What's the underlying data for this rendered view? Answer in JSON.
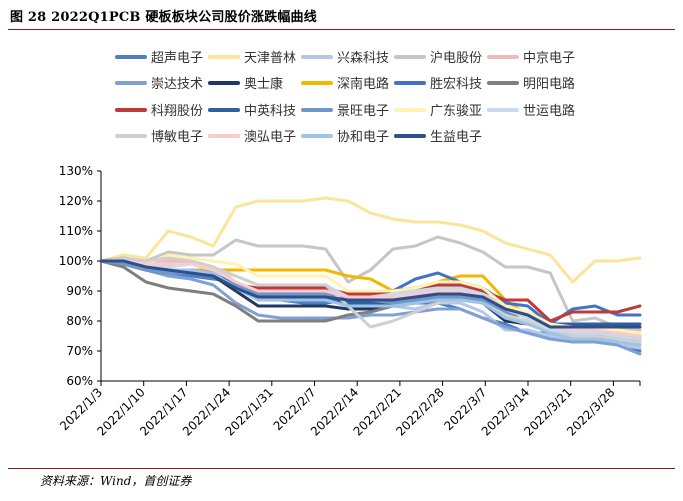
{
  "figure": {
    "title": "图 28 2022Q1PCB 硬板板块公司股价涨跌幅曲线",
    "source": "资料来源：Wind，首创证券"
  },
  "chart_data": {
    "type": "line",
    "title": "图 28 2022Q1PCB 硬板板块公司股价涨跌幅曲线",
    "xlabel": "",
    "ylabel": "",
    "ylim": [
      0.6,
      1.3
    ],
    "y_ticks": [
      0.6,
      0.7,
      0.8,
      0.9,
      1.0,
      1.1,
      1.2,
      1.3
    ],
    "y_tick_labels": [
      "60%",
      "70%",
      "80%",
      "90%",
      "100%",
      "110%",
      "120%",
      "130%"
    ],
    "x_tick_labels": [
      "2022/1/3",
      "2022/1/10",
      "2022/1/17",
      "2022/1/24",
      "2022/1/31",
      "2022/2/7",
      "2022/2/14",
      "2022/2/21",
      "2022/2/28",
      "2022/3/7",
      "2022/3/14",
      "2022/3/21",
      "2022/3/28"
    ],
    "legend_position": "top",
    "series": [
      {
        "name": "超声电子",
        "color": "#4f7fc0",
        "values": [
          1.0,
          0.99,
          0.97,
          0.96,
          0.95,
          0.94,
          0.93,
          0.89,
          0.87,
          0.86,
          0.86,
          0.87,
          0.87,
          0.86,
          0.86,
          0.86,
          0.84,
          0.81,
          0.79,
          0.76,
          0.76,
          0.74,
          0.74,
          0.72,
          0.7
        ]
      },
      {
        "name": "天津普林",
        "color": "#fbe59a",
        "values": [
          1.0,
          1.02,
          1.01,
          1.1,
          1.08,
          1.05,
          1.18,
          1.2,
          1.2,
          1.2,
          1.21,
          1.2,
          1.16,
          1.14,
          1.13,
          1.13,
          1.12,
          1.1,
          1.06,
          1.04,
          1.02,
          0.93,
          1.0,
          1.0,
          1.01
        ]
      },
      {
        "name": "兴森科技",
        "color": "#b4c7e7",
        "values": [
          1.0,
          1.0,
          0.98,
          0.97,
          0.96,
          0.95,
          0.92,
          0.88,
          0.88,
          0.88,
          0.88,
          0.86,
          0.86,
          0.85,
          0.84,
          0.86,
          0.86,
          0.83,
          0.77,
          0.77,
          0.75,
          0.73,
          0.73,
          0.72,
          0.71
        ]
      },
      {
        "name": "沪电股份",
        "color": "#c6c6c6",
        "values": [
          1.0,
          1.01,
          1.0,
          1.03,
          1.02,
          1.02,
          1.07,
          1.05,
          1.05,
          1.05,
          1.04,
          0.93,
          0.97,
          1.04,
          1.05,
          1.08,
          1.06,
          1.03,
          0.98,
          0.98,
          0.96,
          0.8,
          0.81,
          0.78,
          0.77
        ]
      },
      {
        "name": "中京电子",
        "color": "#f4b9b5",
        "values": [
          1.0,
          1.0,
          0.99,
          1.0,
          1.0,
          0.98,
          0.93,
          0.89,
          0.89,
          0.89,
          0.89,
          0.88,
          0.88,
          0.88,
          0.89,
          0.9,
          0.9,
          0.89,
          0.85,
          0.82,
          0.78,
          0.77,
          0.76,
          0.76,
          0.75
        ]
      },
      {
        "name": "崇达技术",
        "color": "#7ea0d6",
        "values": [
          1.0,
          0.99,
          0.97,
          0.95,
          0.94,
          0.92,
          0.86,
          0.82,
          0.81,
          0.81,
          0.81,
          0.81,
          0.82,
          0.82,
          0.83,
          0.84,
          0.84,
          0.81,
          0.78,
          0.76,
          0.74,
          0.73,
          0.73,
          0.72,
          0.69
        ]
      },
      {
        "name": "奥士康",
        "color": "#1f3864",
        "values": [
          1.0,
          0.99,
          0.97,
          0.96,
          0.96,
          0.95,
          0.9,
          0.85,
          0.85,
          0.85,
          0.85,
          0.84,
          0.84,
          0.85,
          0.86,
          0.87,
          0.88,
          0.86,
          0.8,
          0.79,
          0.77,
          0.75,
          0.75,
          0.74,
          0.74
        ]
      },
      {
        "name": "深南电路",
        "color": "#f2b800",
        "values": [
          1.0,
          1.0,
          0.98,
          0.96,
          0.97,
          0.97,
          0.97,
          0.97,
          0.97,
          0.97,
          0.97,
          0.95,
          0.94,
          0.9,
          0.91,
          0.93,
          0.95,
          0.95,
          0.87,
          0.82,
          0.78,
          0.76,
          0.76,
          0.75,
          0.74
        ]
      },
      {
        "name": "胜宏科技",
        "color": "#4472c4",
        "values": [
          1.0,
          1.0,
          0.98,
          0.97,
          0.97,
          0.96,
          0.92,
          0.9,
          0.9,
          0.9,
          0.9,
          0.88,
          0.89,
          0.9,
          0.94,
          0.96,
          0.93,
          0.91,
          0.86,
          0.85,
          0.79,
          0.84,
          0.85,
          0.82,
          0.82
        ]
      },
      {
        "name": "明阳电路",
        "color": "#7f7f7f",
        "values": [
          1.0,
          0.98,
          0.93,
          0.91,
          0.9,
          0.89,
          0.85,
          0.8,
          0.8,
          0.8,
          0.8,
          0.82,
          0.83,
          0.85,
          0.87,
          0.88,
          0.88,
          0.86,
          0.82,
          0.82,
          0.79,
          0.76,
          0.76,
          0.75,
          0.73
        ]
      },
      {
        "name": "科翔股份",
        "color": "#c0393b",
        "values": [
          1.0,
          1.0,
          0.98,
          0.97,
          0.97,
          0.95,
          0.92,
          0.91,
          0.91,
          0.91,
          0.91,
          0.89,
          0.89,
          0.9,
          0.91,
          0.92,
          0.92,
          0.9,
          0.87,
          0.87,
          0.8,
          0.83,
          0.83,
          0.83,
          0.85
        ]
      },
      {
        "name": "中英科技",
        "color": "#2e5fa3",
        "values": [
          1.0,
          1.01,
          0.99,
          0.97,
          0.97,
          0.96,
          0.93,
          0.88,
          0.88,
          0.88,
          0.88,
          0.86,
          0.86,
          0.86,
          0.87,
          0.89,
          0.89,
          0.88,
          0.84,
          0.83,
          0.79,
          0.79,
          0.79,
          0.79,
          0.79
        ]
      },
      {
        "name": "景旺电子",
        "color": "#6f97c9",
        "values": [
          1.0,
          0.99,
          0.97,
          0.96,
          0.96,
          0.95,
          0.92,
          0.89,
          0.89,
          0.89,
          0.89,
          0.87,
          0.87,
          0.86,
          0.87,
          0.88,
          0.88,
          0.87,
          0.83,
          0.82,
          0.78,
          0.76,
          0.76,
          0.75,
          0.75
        ]
      },
      {
        "name": "广东骏亚",
        "color": "#fff2b3",
        "values": [
          1.0,
          1.0,
          0.99,
          1.02,
          1.01,
          1.0,
          0.99,
          0.95,
          0.95,
          0.95,
          0.95,
          0.9,
          0.9,
          0.9,
          0.91,
          0.93,
          0.93,
          0.91,
          0.85,
          0.83,
          0.79,
          0.78,
          0.78,
          0.77,
          0.76
        ]
      },
      {
        "name": "世运电路",
        "color": "#c9d9ee",
        "values": [
          1.0,
          1.0,
          0.98,
          0.98,
          0.99,
          0.97,
          0.95,
          0.92,
          0.92,
          0.92,
          0.92,
          0.88,
          0.88,
          0.89,
          0.9,
          0.91,
          0.91,
          0.89,
          0.84,
          0.81,
          0.77,
          0.76,
          0.76,
          0.75,
          0.74
        ]
      },
      {
        "name": "博敏电子",
        "color": "#cfcfcf",
        "values": [
          1.0,
          1.01,
          1.0,
          1.01,
          1.0,
          0.98,
          0.95,
          0.92,
          0.92,
          0.92,
          0.92,
          0.85,
          0.78,
          0.8,
          0.83,
          0.86,
          0.87,
          0.86,
          0.82,
          0.8,
          0.76,
          0.75,
          0.75,
          0.74,
          0.73
        ]
      },
      {
        "name": "澳弘电子",
        "color": "#f8cccc",
        "values": [
          1.0,
          1.0,
          0.99,
          0.99,
          0.99,
          0.97,
          0.93,
          0.9,
          0.9,
          0.9,
          0.9,
          0.88,
          0.88,
          0.88,
          0.89,
          0.9,
          0.9,
          0.88,
          0.84,
          0.82,
          0.78,
          0.77,
          0.77,
          0.76,
          0.75
        ]
      },
      {
        "name": "协和电子",
        "color": "#9dc3e6",
        "values": [
          1.0,
          1.0,
          0.98,
          0.97,
          0.97,
          0.96,
          0.91,
          0.87,
          0.87,
          0.87,
          0.87,
          0.85,
          0.85,
          0.85,
          0.86,
          0.87,
          0.87,
          0.86,
          0.81,
          0.79,
          0.76,
          0.74,
          0.74,
          0.73,
          0.72
        ]
      },
      {
        "name": "生益电子",
        "color": "#2f4f8a",
        "values": [
          1.0,
          1.0,
          0.98,
          0.97,
          0.96,
          0.95,
          0.91,
          0.88,
          0.88,
          0.88,
          0.88,
          0.87,
          0.87,
          0.87,
          0.88,
          0.89,
          0.89,
          0.88,
          0.84,
          0.82,
          0.78,
          0.78,
          0.78,
          0.78,
          0.78
        ]
      }
    ]
  }
}
